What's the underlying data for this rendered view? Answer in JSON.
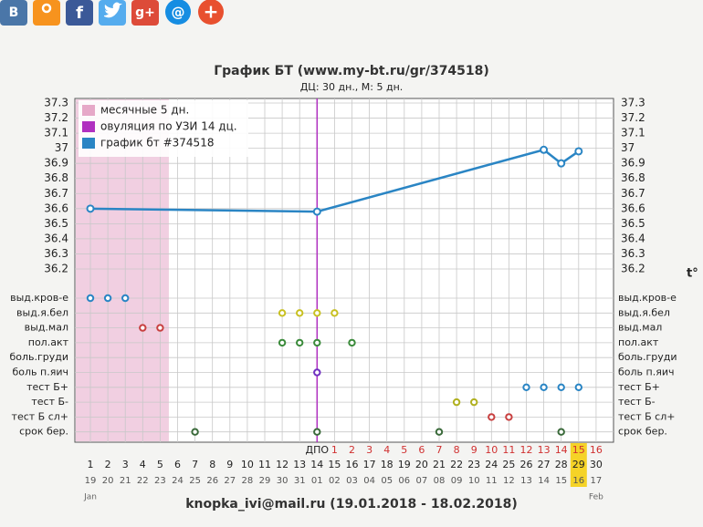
{
  "share_icons": [
    "В",
    "f",
    "g+",
    "@",
    "+"
  ],
  "chart_data": {
    "type": "line",
    "title": "График БТ (www.my-bt.ru/gr/374518)",
    "subtitle": "ДЦ: 30 дн., М: 5 дн.",
    "y_unit": "t°",
    "ylim": [
      36.2,
      37.3
    ],
    "yticks": [
      36.2,
      36.3,
      36.4,
      36.5,
      36.6,
      36.7,
      36.8,
      36.9,
      37,
      37.1,
      37.2,
      37.3
    ],
    "grid": true,
    "xticks": [
      1,
      2,
      3,
      4,
      5,
      6,
      7,
      8,
      9,
      10,
      11,
      12,
      13,
      14,
      15,
      16,
      17,
      18,
      19,
      20,
      21,
      22,
      23,
      24,
      25,
      26,
      27,
      28,
      29,
      30
    ],
    "date_labels": [
      "19",
      "20",
      "21",
      "22",
      "23",
      "24",
      "25",
      "26",
      "27",
      "28",
      "29",
      "30",
      "31",
      "01",
      "02",
      "03",
      "04",
      "05",
      "06",
      "07",
      "08",
      "09",
      "10",
      "11",
      "12",
      "13",
      "14",
      "15",
      "16",
      "17"
    ],
    "dpo_labels": [
      null,
      null,
      null,
      null,
      null,
      null,
      null,
      null,
      null,
      null,
      null,
      null,
      null,
      "ДПО",
      1,
      2,
      3,
      4,
      5,
      6,
      7,
      8,
      9,
      10,
      11,
      12,
      13,
      14,
      15,
      16
    ],
    "months": [
      {
        "label": "Jan",
        "day": 1
      },
      {
        "label": "Feb",
        "day": 30
      }
    ],
    "highlight_day": 29,
    "menses": {
      "name": "месячные 5 дн.",
      "color": "#e6a8c8",
      "days": [
        1,
        5
      ]
    },
    "ovulation": {
      "name": "овуляция по УЗИ 14 дц.",
      "color": "#b030c0",
      "day": 14
    },
    "series": [
      {
        "name": "график бт #374518",
        "color": "#2a85c4",
        "x": [
          1,
          14,
          27,
          28,
          29
        ],
        "values": [
          36.6,
          36.58,
          36.99,
          36.9,
          36.98
        ]
      }
    ],
    "symptoms": [
      {
        "name": "выд.кров-е",
        "color": "#2a85c4",
        "days": [
          1,
          2,
          3
        ]
      },
      {
        "name": "выд.я.бел",
        "color": "#c8c020",
        "days": [
          12,
          13,
          14,
          15
        ]
      },
      {
        "name": "выд.мал",
        "color": "#c84040",
        "days": [
          4,
          5
        ]
      },
      {
        "name": "пол.акт",
        "color": "#3a8a3a",
        "days": [
          12,
          13,
          14,
          16
        ]
      },
      {
        "name": "боль.груди",
        "color": "#888888",
        "days": []
      },
      {
        "name": "боль п.яич",
        "color": "#7030c0",
        "days": [
          14
        ]
      },
      {
        "name": "тест Б+",
        "color": "#2a85c4",
        "days": [
          26,
          27,
          28,
          29
        ]
      },
      {
        "name": "тест Б-",
        "color": "#b0b020",
        "days": [
          22,
          23
        ]
      },
      {
        "name": "тест Б сл+",
        "color": "#c84040",
        "days": [
          24,
          25
        ]
      },
      {
        "name": "срок бер.",
        "color": "#3a6a3a",
        "days": [
          7,
          14,
          21,
          28
        ]
      }
    ]
  },
  "footer": "knopka_ivi@mail.ru (19.01.2018 - 18.02.2018)"
}
